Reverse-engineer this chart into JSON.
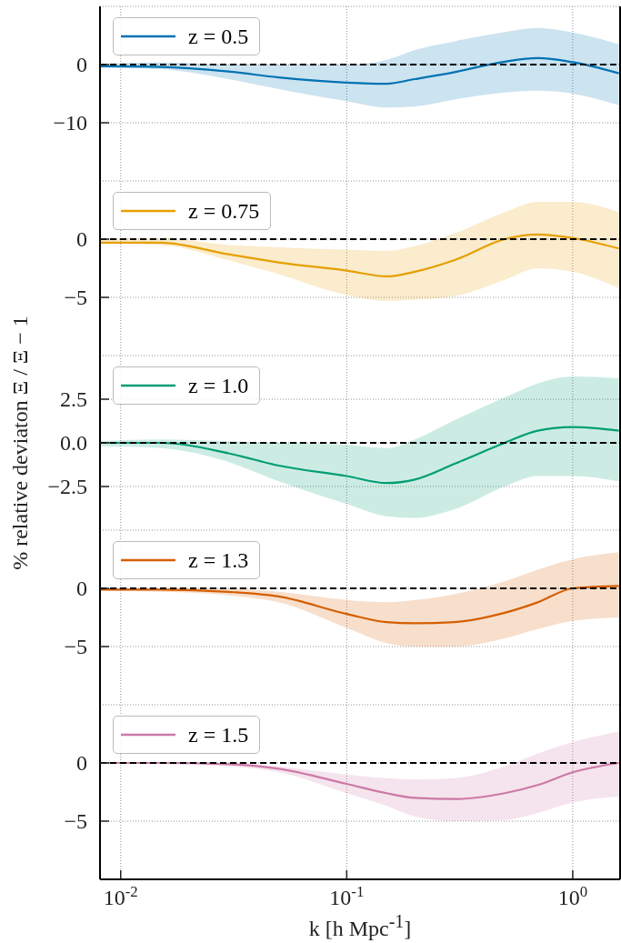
{
  "chart_data": [
    {
      "type": "line",
      "x": [
        0.0081,
        0.015,
        0.03,
        0.05,
        0.1,
        0.15,
        0.2,
        0.3,
        0.5,
        0.7,
        1.0,
        1.6
      ],
      "xlim": [
        0.0081,
        1.62
      ],
      "xticks": [
        0.01,
        0.1,
        1
      ],
      "log": "x",
      "ylim": [
        -20,
        10
      ],
      "yticks": [
        {
          "value": -10,
          "label": "−10"
        },
        {
          "value": 0,
          "label": "0"
        }
      ],
      "grid": true,
      "legend": "top left",
      "tick_labels": "y",
      "ref_lines": [
        {
          "axis": "y",
          "value": 0,
          "color": "#000000",
          "line_style": "dashed"
        }
      ],
      "series": [
        {
          "name": "z = 0.5",
          "color": "#0072b2",
          "values": [
            -0.3,
            -0.4,
            -1.2,
            -2.2,
            -3.1,
            -3.3,
            -2.5,
            -1.3,
            0.5,
            1.1,
            0.4,
            -1.5
          ],
          "upper": [
            0.1,
            0.4,
            0,
            0,
            0,
            0.8,
            2.5,
            4,
            5.6,
            6.3,
            5.5,
            3.5
          ],
          "lower": [
            -0.5,
            -0.8,
            -2.5,
            -4.2,
            -6.3,
            -7.4,
            -7.2,
            -6,
            -4.8,
            -4.5,
            -5,
            -7
          ]
        }
      ]
    },
    {
      "type": "line",
      "x": [
        0.0081,
        0.015,
        0.03,
        0.05,
        0.1,
        0.15,
        0.2,
        0.3,
        0.5,
        0.7,
        1.0,
        1.6
      ],
      "xlim": [
        0.0081,
        1.62
      ],
      "xticks": [
        0.01,
        0.1,
        1
      ],
      "log": "x",
      "ylim": [
        -10,
        5
      ],
      "yticks": [
        {
          "value": -5,
          "label": "−5"
        },
        {
          "value": 0,
          "label": "0"
        }
      ],
      "grid": true,
      "legend": "top left",
      "tick_labels": "y",
      "ref_lines": [
        {
          "axis": "y",
          "value": 0,
          "color": "#000000",
          "line_style": "dashed"
        }
      ],
      "series": [
        {
          "name": "z = 0.75",
          "color": "#e69f00",
          "values": [
            -0.3,
            -0.3,
            -1.3,
            -2,
            -2.7,
            -3.2,
            -2.8,
            -1.8,
            0,
            0.4,
            0.1,
            -0.8
          ],
          "upper": [
            0.1,
            0.1,
            -0.5,
            -0.7,
            -0.9,
            -1,
            -0.6,
            0.5,
            2.3,
            3.2,
            3.2,
            2.3
          ],
          "lower": [
            -0.4,
            -0.5,
            -1.8,
            -3,
            -4.8,
            -5.3,
            -5.2,
            -4.9,
            -3.5,
            -2.5,
            -2.8,
            -4.2
          ]
        }
      ]
    },
    {
      "type": "line",
      "x": [
        0.0081,
        0.015,
        0.03,
        0.05,
        0.1,
        0.15,
        0.2,
        0.3,
        0.5,
        0.7,
        1.0,
        1.6
      ],
      "xlim": [
        0.0081,
        1.62
      ],
      "xticks": [
        0.01,
        0.1,
        1
      ],
      "log": "x",
      "ylim": [
        -5,
        5
      ],
      "yticks": [
        {
          "value": -2.5,
          "label": "−2.5"
        },
        {
          "value": 0,
          "label": "0.0"
        },
        {
          "value": 2.5,
          "label": "2.5"
        }
      ],
      "grid": true,
      "legend": "top left",
      "tick_labels": "y",
      "ylabel": "% relative deviaton Ξ / Ξ − 1",
      "ref_lines": [
        {
          "axis": "y",
          "value": 0,
          "color": "#000000",
          "line_style": "dashed"
        }
      ],
      "series": [
        {
          "name": "z = 1.0",
          "color": "#009e73",
          "values": [
            0,
            0,
            -0.6,
            -1.3,
            -1.9,
            -2.3,
            -2.1,
            -1.2,
            0,
            0.7,
            0.9,
            0.7
          ],
          "upper": [
            0.1,
            0.2,
            0.1,
            0,
            -0.1,
            -0.3,
            0.2,
            1.3,
            2.6,
            3.4,
            3.8,
            3.7
          ],
          "lower": [
            -0.2,
            -0.3,
            -1.1,
            -2.2,
            -3.5,
            -4.2,
            -4.3,
            -3.8,
            -2.5,
            -1.9,
            -1.9,
            -2.2
          ]
        }
      ]
    },
    {
      "type": "line",
      "x": [
        0.0081,
        0.015,
        0.03,
        0.05,
        0.1,
        0.15,
        0.2,
        0.3,
        0.5,
        0.7,
        1.0,
        1.6
      ],
      "xlim": [
        0.0081,
        1.62
      ],
      "xticks": [
        0.01,
        0.1,
        1
      ],
      "log": "x",
      "ylim": [
        -10,
        5
      ],
      "yticks": [
        {
          "value": -5,
          "label": "−5"
        },
        {
          "value": 0,
          "label": "0"
        }
      ],
      "grid": true,
      "legend": "top left",
      "tick_labels": "y",
      "ref_lines": [
        {
          "axis": "y",
          "value": 0,
          "color": "#000000",
          "line_style": "dashed"
        }
      ],
      "series": [
        {
          "name": "z = 1.3",
          "color": "#d55e00",
          "values": [
            -0.1,
            -0.1,
            -0.3,
            -0.7,
            -2.2,
            -2.9,
            -3,
            -2.9,
            -2.1,
            -1.2,
            0,
            0.2
          ],
          "upper": [
            0,
            0,
            0,
            -0.3,
            -1,
            -1.2,
            -1,
            -0.5,
            0.6,
            1.6,
            2.5,
            3.1
          ],
          "lower": [
            -0.2,
            -0.3,
            -0.6,
            -1.2,
            -3.4,
            -4.7,
            -5,
            -5,
            -4.3,
            -3.5,
            -2.8,
            -2.5
          ]
        }
      ]
    },
    {
      "type": "line",
      "x": [
        0.0081,
        0.015,
        0.03,
        0.05,
        0.1,
        0.15,
        0.2,
        0.3,
        0.5,
        0.7,
        1.0,
        1.6
      ],
      "xlim": [
        0.0081,
        1.62
      ],
      "xticks": [
        {
          "value": 0.01,
          "label": "10$^{-2}$"
        },
        {
          "value": 0.1,
          "label": "10$^{-1}$"
        },
        {
          "value": 1,
          "label": "10$^{0}$"
        }
      ],
      "log": "x",
      "ylim": [
        -10,
        5
      ],
      "yticks": [
        {
          "value": -5,
          "label": "−5"
        },
        {
          "value": 0,
          "label": "0"
        }
      ],
      "grid": true,
      "legend": "top left",
      "xlabel": "k [h Mpc$^{-1}$]",
      "ref_lines": [
        {
          "axis": "y",
          "value": 0,
          "color": "#000000",
          "line_style": "dashed"
        }
      ],
      "series": [
        {
          "name": "z = 1.5",
          "color": "#cc79a7",
          "values": [
            0,
            0,
            -0.1,
            -0.5,
            -1.8,
            -2.6,
            -3,
            -3.1,
            -2.6,
            -1.9,
            -0.8,
            0
          ],
          "upper": [
            0.1,
            0.1,
            0,
            -0.3,
            -1,
            -1.3,
            -1.4,
            -1.3,
            -0.3,
            0.8,
            1.8,
            2.7
          ],
          "lower": [
            -0.1,
            -0.1,
            -0.3,
            -0.8,
            -2.6,
            -3.7,
            -4.6,
            -5,
            -4.9,
            -4.3,
            -3.4,
            -2.9
          ]
        }
      ]
    }
  ]
}
